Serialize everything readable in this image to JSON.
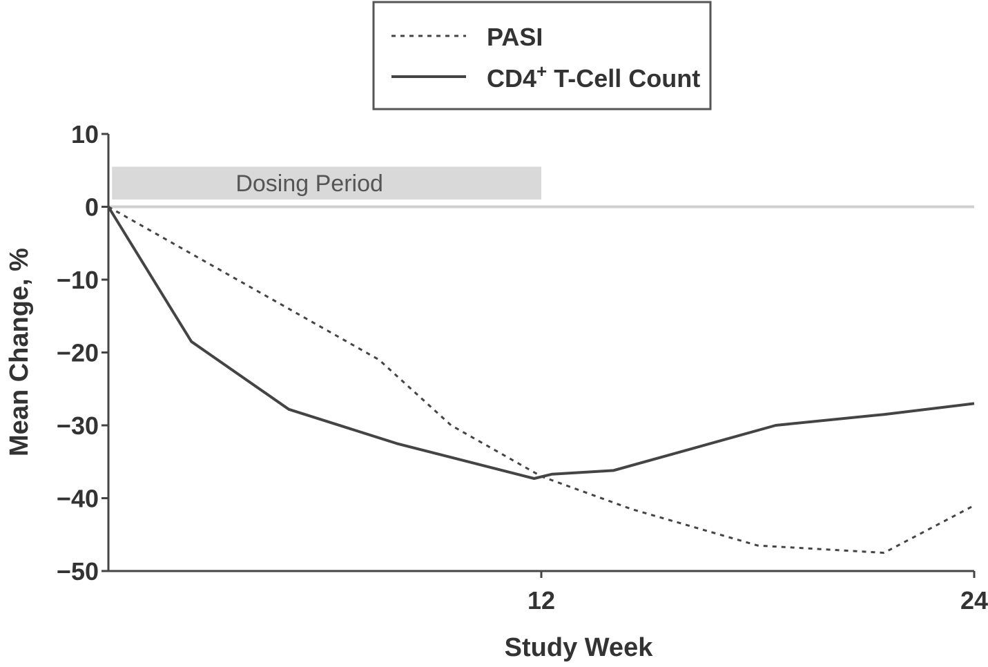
{
  "chart_data": {
    "type": "line",
    "xlabel": "Study Week",
    "ylabel": "Mean Change, %",
    "xlim": [
      0,
      24
    ],
    "ylim": [
      -50,
      10
    ],
    "x_ticks": [
      {
        "value": 12,
        "label": "12"
      },
      {
        "value": 24,
        "label": "24"
      }
    ],
    "y_ticks": [
      {
        "value": 10,
        "label": "10"
      },
      {
        "value": 0,
        "label": "0"
      },
      {
        "value": -10,
        "label": "−10"
      },
      {
        "value": -20,
        "label": "−20"
      },
      {
        "value": -30,
        "label": "−30"
      },
      {
        "value": -40,
        "label": "−40"
      },
      {
        "value": -50,
        "label": "−50"
      }
    ],
    "reference_line": {
      "y": 0,
      "color": "#cfcfcf"
    },
    "dosing_band": {
      "label": "Dosing Period",
      "x_start": 0.1,
      "x_end": 12,
      "y_top": 5.5,
      "y_bottom": 1,
      "color": "#d9d9d9"
    },
    "legend": {
      "position": "top-center",
      "entries": [
        {
          "name": "PASI",
          "style": "dotted"
        },
        {
          "name": "CD4",
          "superscript": "+",
          "suffix": " T-Cell Count",
          "style": "solid"
        }
      ]
    },
    "series": [
      {
        "name": "PASI",
        "style": "dotted",
        "color": "#444444",
        "points": [
          [
            0,
            0
          ],
          [
            2.5,
            -7
          ],
          [
            5,
            -14
          ],
          [
            7.5,
            -21
          ],
          [
            9.5,
            -30
          ],
          [
            12,
            -37
          ],
          [
            14.5,
            -41.5
          ],
          [
            18,
            -46.5
          ],
          [
            21.5,
            -47.5
          ],
          [
            24,
            -41
          ]
        ]
      },
      {
        "name": "CD4+ T-Cell Count",
        "style": "solid",
        "color": "#444444",
        "points": [
          [
            0,
            0
          ],
          [
            2.3,
            -18.5
          ],
          [
            5,
            -27.8
          ],
          [
            8,
            -32.5
          ],
          [
            11.8,
            -37.3
          ],
          [
            12.3,
            -36.7
          ],
          [
            14,
            -36.2
          ],
          [
            18.5,
            -30
          ],
          [
            21.5,
            -28.5
          ],
          [
            24,
            -27
          ]
        ]
      }
    ]
  }
}
